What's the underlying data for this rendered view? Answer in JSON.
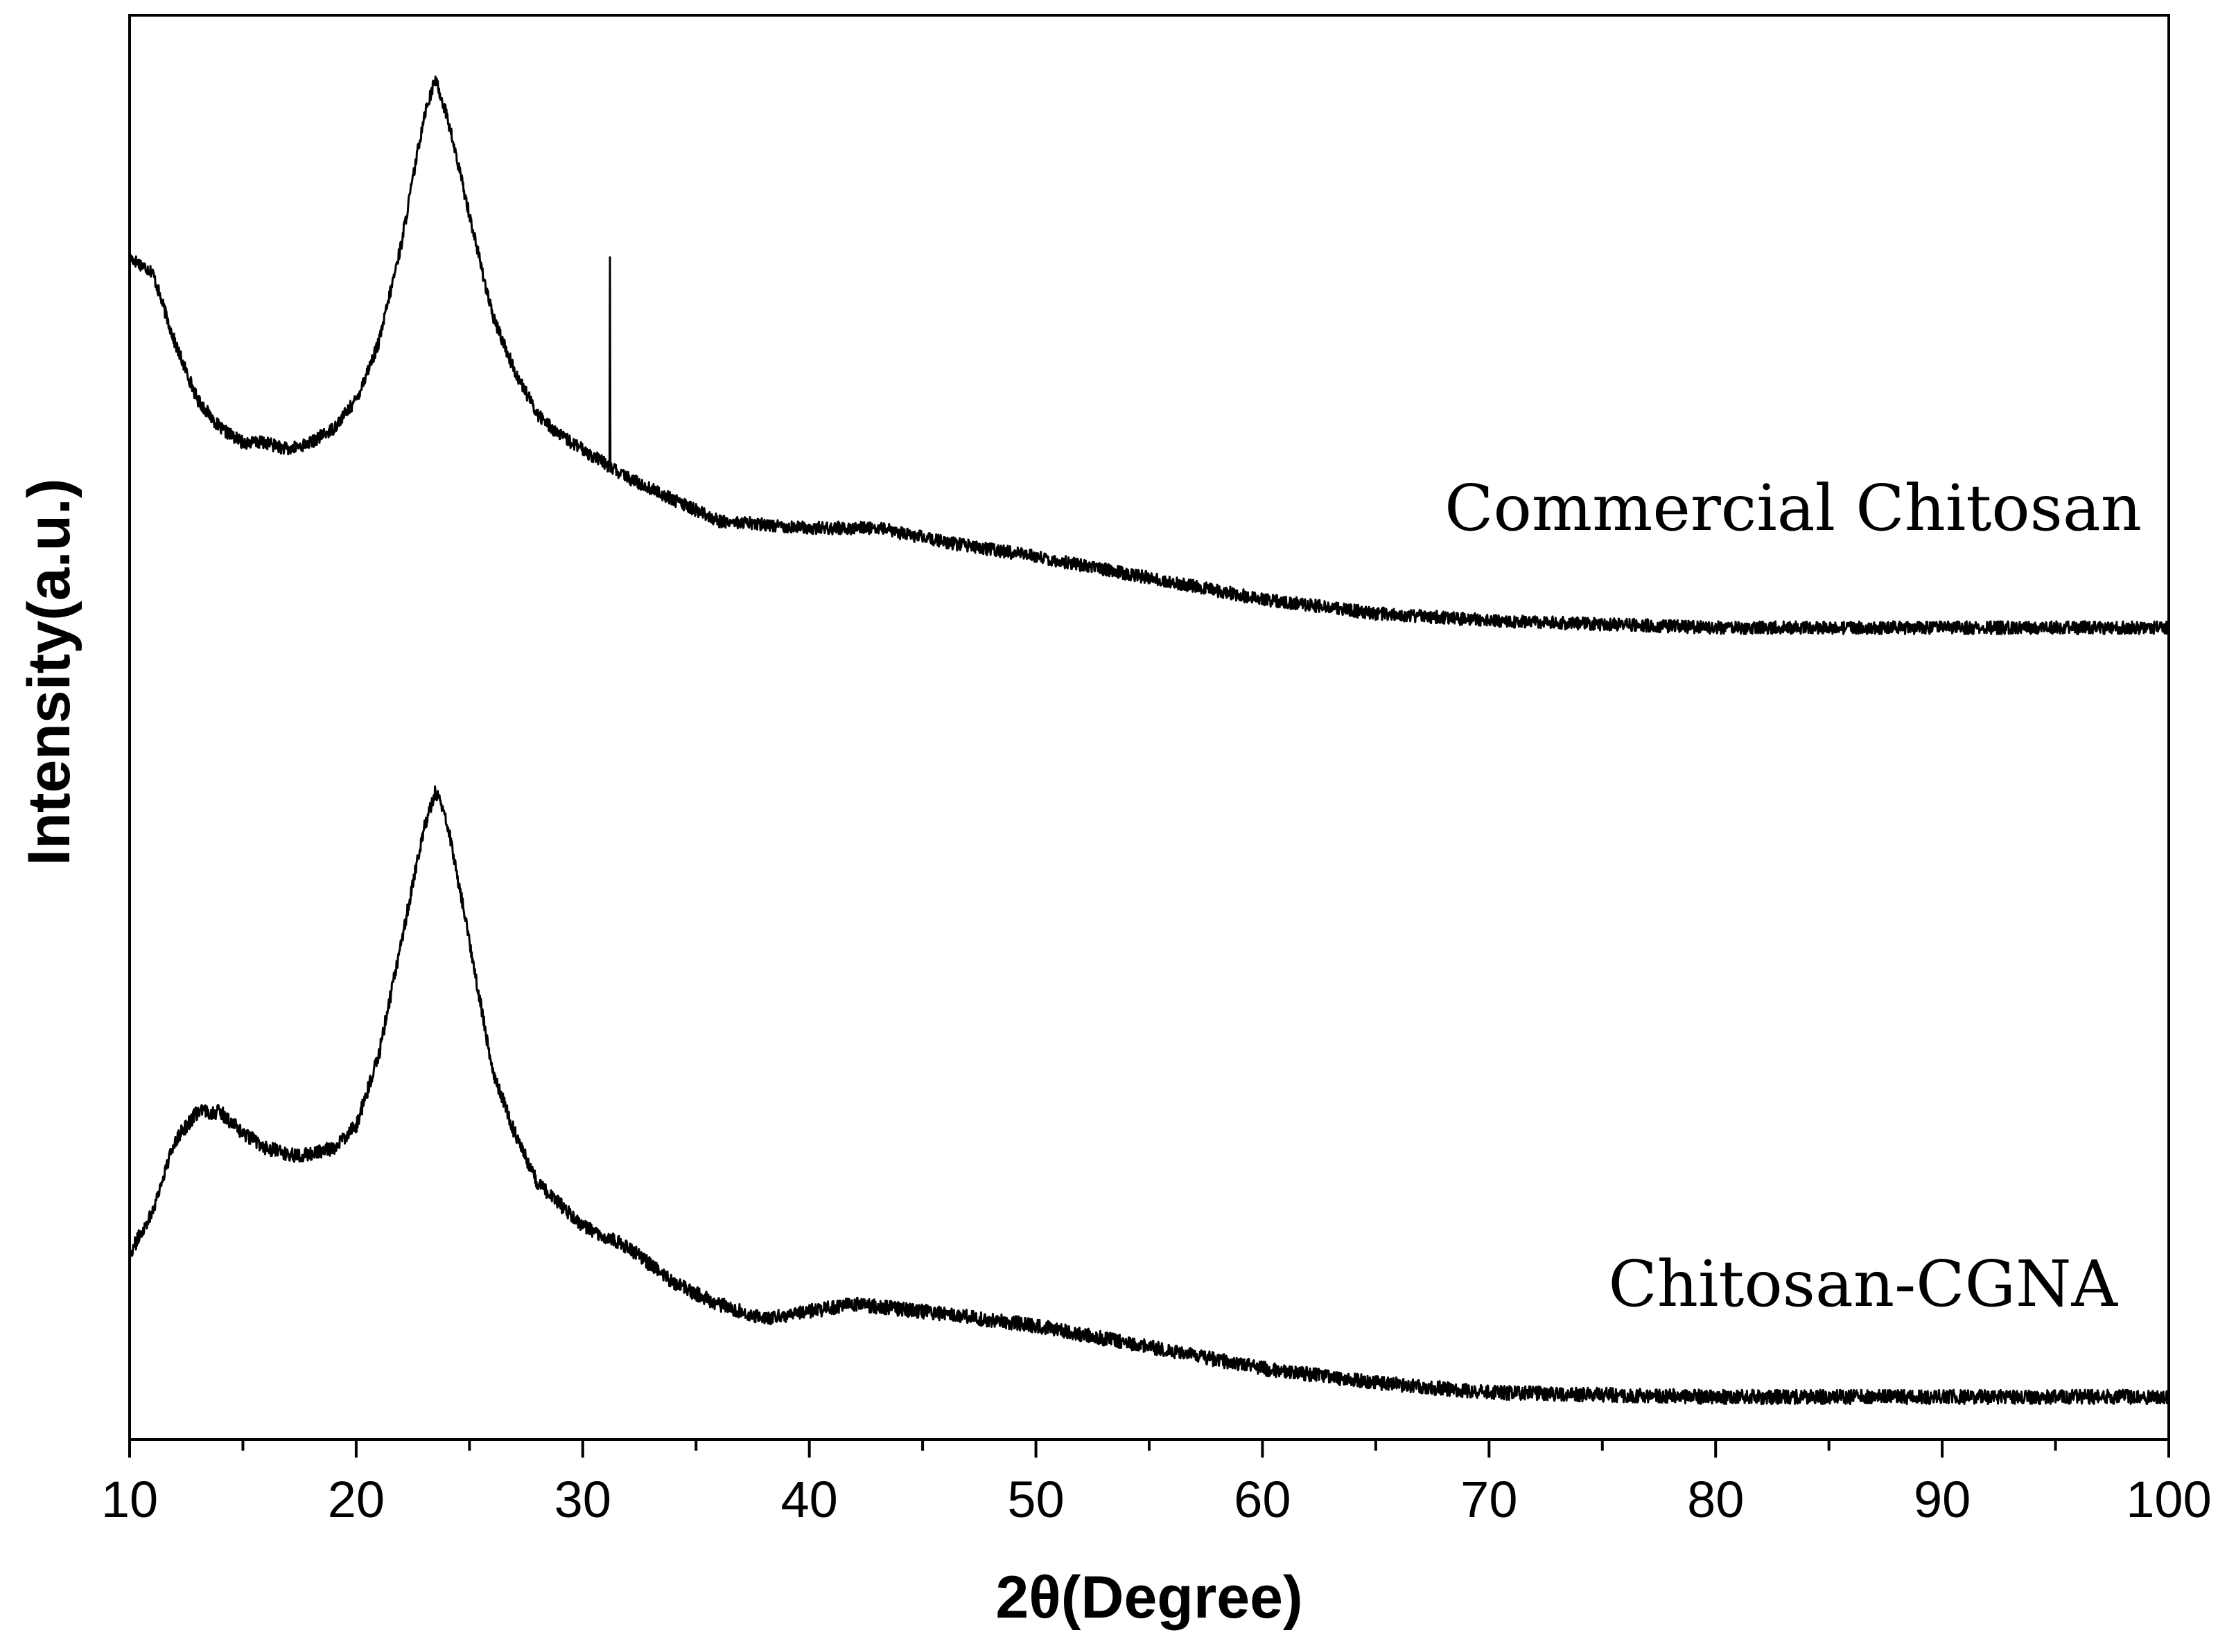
{
  "chart_data": {
    "type": "line",
    "title": "",
    "xlabel": "2θ(Degree)",
    "ylabel": "Intensity(a.u.)",
    "xlim": [
      10,
      100
    ],
    "ylim": [
      0,
      100
    ],
    "y_ticks_shown": false,
    "grid": false,
    "x_major_ticks": [
      10,
      20,
      30,
      40,
      50,
      60,
      70,
      80,
      90,
      100
    ],
    "x_minor_ticks": [
      15,
      25,
      35,
      45,
      55,
      65,
      75,
      85,
      95
    ],
    "x_tick_labels": [
      "10",
      "20",
      "30",
      "40",
      "50",
      "60",
      "70",
      "80",
      "90",
      "100"
    ],
    "series": [
      {
        "name": "Commercial Chitosan",
        "label": "Commercial Chitosan",
        "color": "#000000",
        "points": [
          [
            10,
            83
          ],
          [
            11,
            82
          ],
          [
            12,
            77
          ],
          [
            13,
            73
          ],
          [
            14,
            71
          ],
          [
            15,
            70
          ],
          [
            16,
            70
          ],
          [
            17,
            69.5
          ],
          [
            18,
            70
          ],
          [
            19,
            71
          ],
          [
            20,
            73
          ],
          [
            21,
            77
          ],
          [
            22,
            84
          ],
          [
            23,
            93
          ],
          [
            23.5,
            95.5
          ],
          [
            24,
            93
          ],
          [
            25,
            86
          ],
          [
            26,
            79
          ],
          [
            27,
            75
          ],
          [
            28,
            72
          ],
          [
            29,
            70.5
          ],
          [
            30,
            69.5
          ],
          [
            31,
            68.5
          ],
          [
            32,
            67.5
          ],
          [
            34,
            66
          ],
          [
            36,
            64.5
          ],
          [
            40,
            64
          ],
          [
            43,
            64
          ],
          [
            46,
            63
          ],
          [
            50,
            62
          ],
          [
            55,
            60.5
          ],
          [
            60,
            59
          ],
          [
            65,
            58
          ],
          [
            70,
            57.5
          ],
          [
            80,
            57
          ],
          [
            90,
            57
          ],
          [
            100,
            57
          ]
        ],
        "spike": {
          "x": 31.2,
          "y": 83
        },
        "noise": 0.45
      },
      {
        "name": "Chitosan-CGNA",
        "label": "Chitosan-CGNA",
        "color": "#000000",
        "points": [
          [
            10,
            13
          ],
          [
            11,
            16
          ],
          [
            12,
            21
          ],
          [
            13,
            23
          ],
          [
            14,
            23
          ],
          [
            15,
            21.5
          ],
          [
            16,
            20.5
          ],
          [
            17,
            20
          ],
          [
            18,
            20
          ],
          [
            19,
            20.5
          ],
          [
            20,
            22
          ],
          [
            21,
            27
          ],
          [
            22,
            35
          ],
          [
            23,
            43
          ],
          [
            23.5,
            45.5
          ],
          [
            24,
            43.5
          ],
          [
            25,
            35
          ],
          [
            26,
            26
          ],
          [
            27,
            21.5
          ],
          [
            28,
            18
          ],
          [
            30,
            15
          ],
          [
            32,
            13.5
          ],
          [
            34,
            11
          ],
          [
            36,
            9.5
          ],
          [
            38,
            8.5
          ],
          [
            40,
            9
          ],
          [
            42,
            9.5
          ],
          [
            45,
            9
          ],
          [
            50,
            8
          ],
          [
            55,
            6.5
          ],
          [
            60,
            5
          ],
          [
            65,
            4
          ],
          [
            70,
            3.3
          ],
          [
            80,
            3
          ],
          [
            90,
            3
          ],
          [
            100,
            3
          ]
        ],
        "noise": 0.5
      }
    ]
  }
}
